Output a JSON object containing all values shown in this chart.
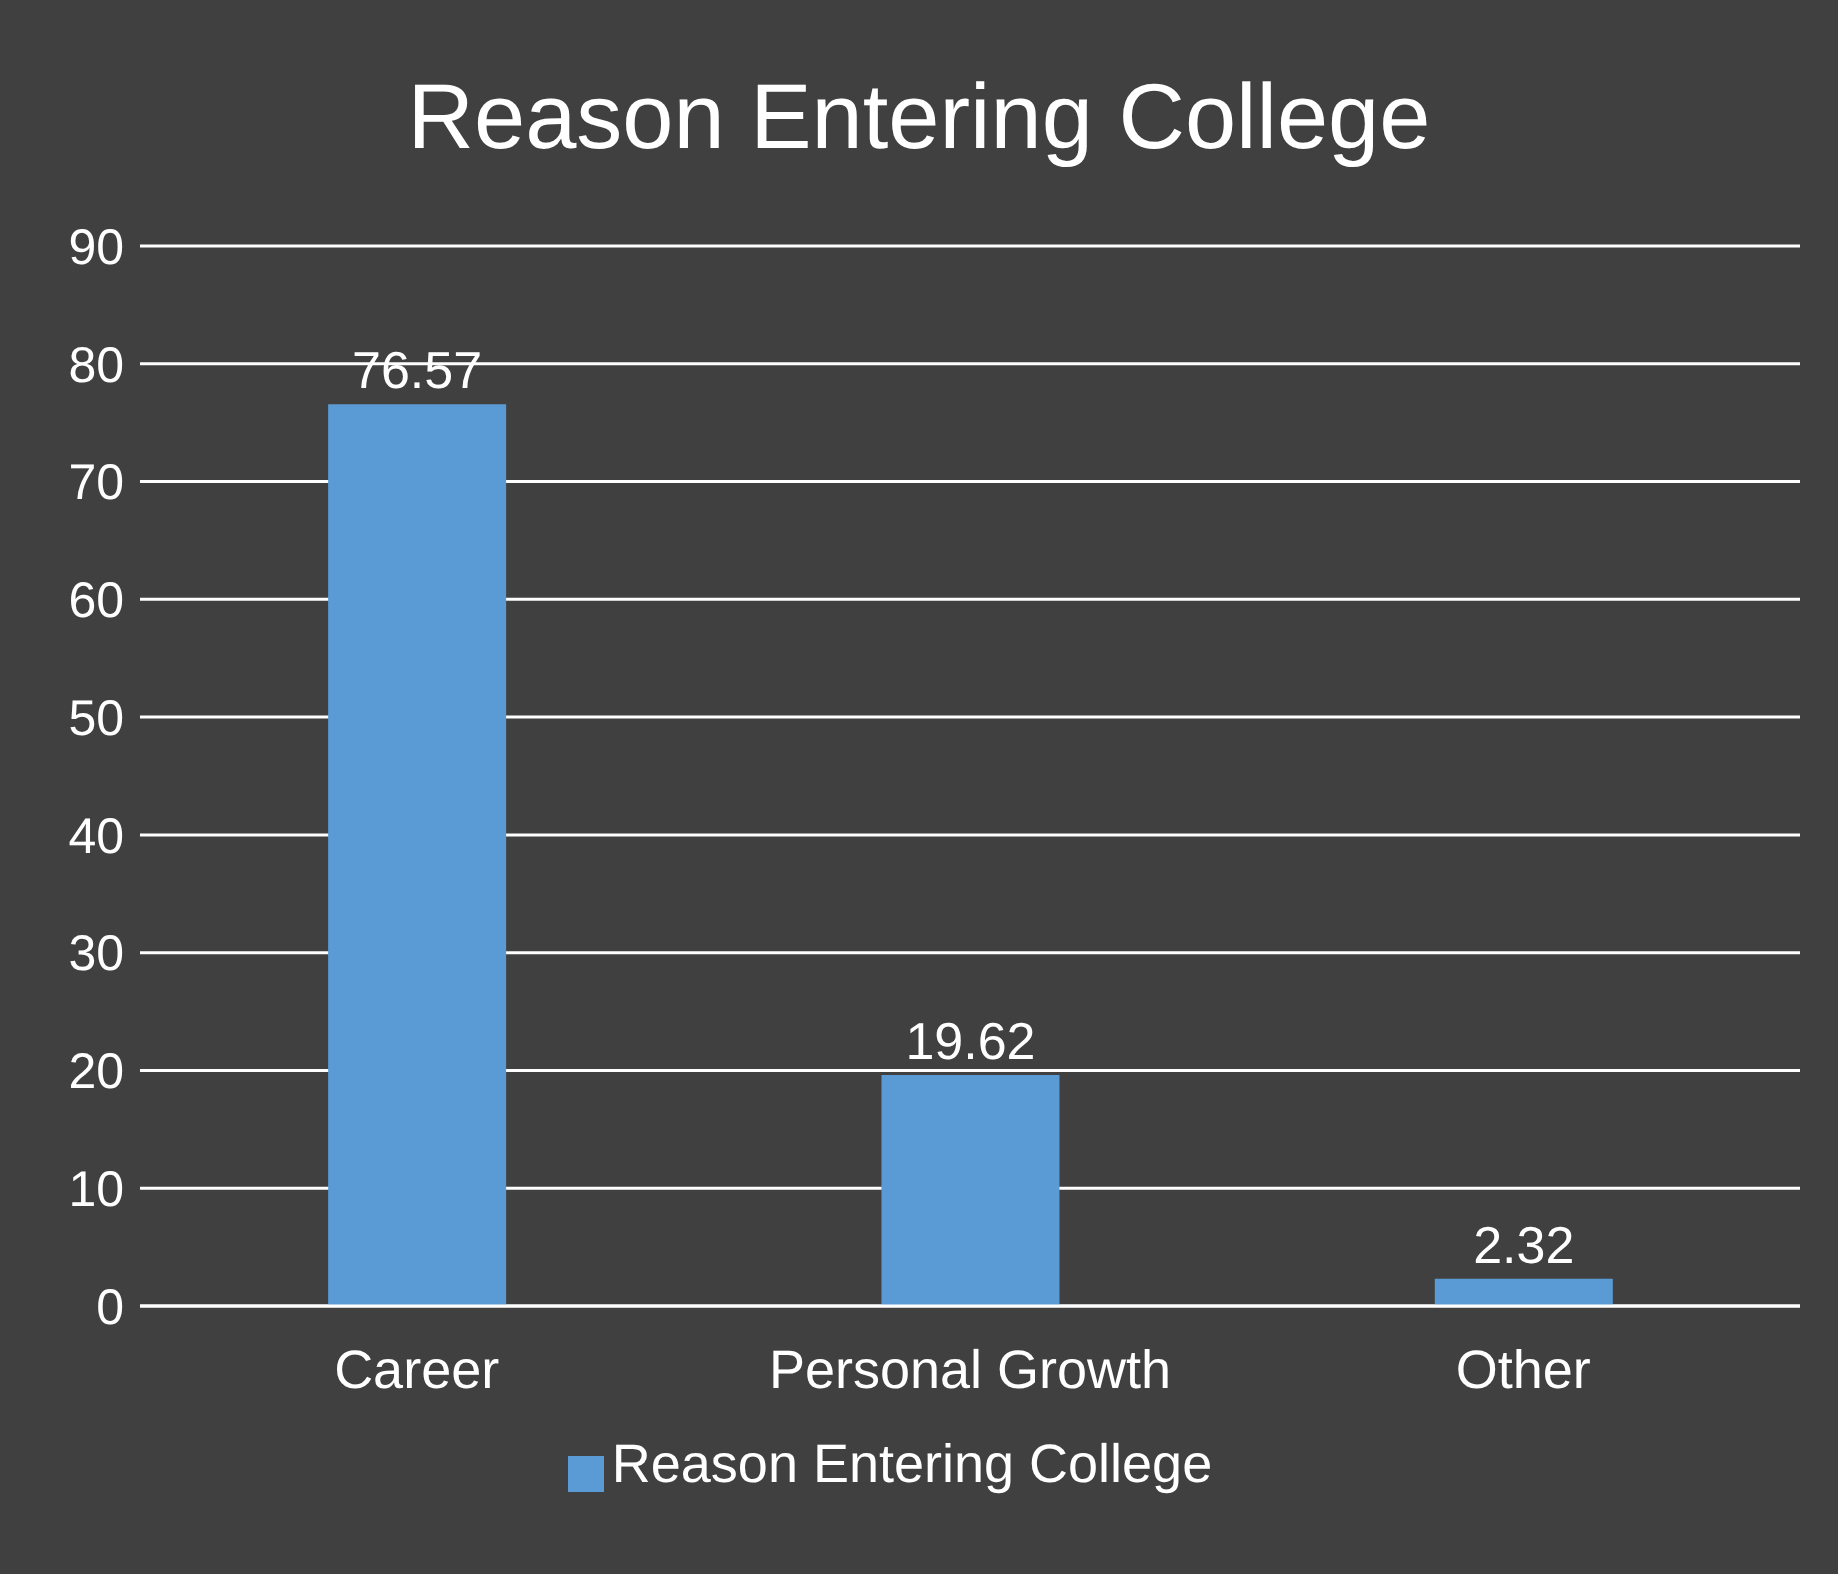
{
  "chart_data": {
    "type": "bar",
    "title": "Reason Entering College",
    "categories": [
      "Career",
      "Personal Growth",
      "Other"
    ],
    "series": [
      {
        "name": "Reason Entering College",
        "color": "#5b9bd5",
        "values": [
          76.57,
          19.62,
          2.32
        ]
      }
    ],
    "ylim": [
      0,
      90
    ],
    "yticks": [
      0,
      10,
      20,
      30,
      40,
      50,
      60,
      70,
      80,
      90
    ],
    "grid": "y",
    "legend": "bottom",
    "data_labels": true
  }
}
